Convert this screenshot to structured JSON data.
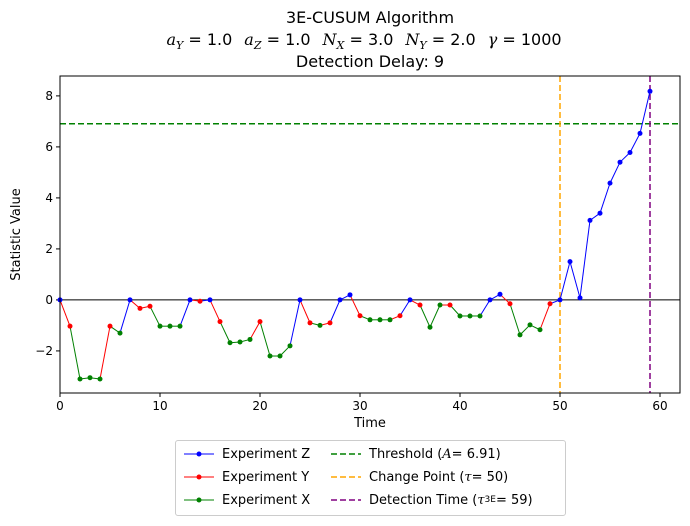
{
  "chart_data": {
    "type": "line",
    "title": "3E-CUSUM Algorithm",
    "subtitle": [
      {
        "sym": "a",
        "sub": "Y",
        "val": " = 1.0"
      },
      {
        "sym": "a",
        "sub": "Z",
        "val": " = 1.0"
      },
      {
        "sym": "N",
        "sub": "X",
        "val": " = 3.0"
      },
      {
        "sym": "N",
        "sub": "Y",
        "val": " = 2.0"
      },
      {
        "sym": "γ",
        "sub": "",
        "val": " = 1000"
      }
    ],
    "subtitle2": "Detection Delay: 9",
    "xlabel": "Time",
    "ylabel": "Statistic Value",
    "xlim": [
      0,
      62
    ],
    "ylim": [
      -3.65,
      8.78
    ],
    "xticks": [
      0,
      10,
      20,
      30,
      40,
      50,
      60
    ],
    "yticks": [
      -2,
      0,
      2,
      4,
      6,
      8
    ],
    "points": [
      [
        0,
        0,
        "Z"
      ],
      [
        1,
        -1.03,
        "Y"
      ],
      [
        2,
        -3.1,
        "X"
      ],
      [
        3,
        -3.05,
        "X"
      ],
      [
        4,
        -3.1,
        "X"
      ],
      [
        5,
        -1.03,
        "Y"
      ],
      [
        6,
        -1.3,
        "X"
      ],
      [
        7,
        0,
        "Z"
      ],
      [
        8,
        -0.33,
        "Y"
      ],
      [
        9,
        -0.25,
        "Y"
      ],
      [
        10,
        -1.03,
        "X"
      ],
      [
        11,
        -1.03,
        "X"
      ],
      [
        12,
        -1.03,
        "X"
      ],
      [
        13,
        0,
        "Z"
      ],
      [
        14,
        -0.05,
        "Y"
      ],
      [
        15,
        0,
        "Z"
      ],
      [
        16,
        -0.85,
        "Y"
      ],
      [
        17,
        -1.68,
        "X"
      ],
      [
        18,
        -1.65,
        "X"
      ],
      [
        19,
        -1.55,
        "X"
      ],
      [
        20,
        -0.85,
        "Y"
      ],
      [
        21,
        -2.2,
        "X"
      ],
      [
        22,
        -2.2,
        "X"
      ],
      [
        23,
        -1.8,
        "X"
      ],
      [
        24,
        0,
        "Z"
      ],
      [
        25,
        -0.9,
        "Y"
      ],
      [
        26,
        -1.0,
        "X"
      ],
      [
        27,
        -0.9,
        "Y"
      ],
      [
        28,
        0,
        "Z"
      ],
      [
        29,
        0.2,
        "Z"
      ],
      [
        30,
        -0.62,
        "Y"
      ],
      [
        31,
        -0.78,
        "X"
      ],
      [
        32,
        -0.78,
        "X"
      ],
      [
        33,
        -0.78,
        "X"
      ],
      [
        34,
        -0.62,
        "Y"
      ],
      [
        35,
        0,
        "Z"
      ],
      [
        36,
        -0.2,
        "Y"
      ],
      [
        37,
        -1.07,
        "X"
      ],
      [
        38,
        -0.2,
        "X"
      ],
      [
        39,
        -0.2,
        "Y"
      ],
      [
        40,
        -0.63,
        "X"
      ],
      [
        41,
        -0.63,
        "X"
      ],
      [
        42,
        -0.63,
        "X"
      ],
      [
        43,
        0,
        "Z"
      ],
      [
        44,
        0.22,
        "Z"
      ],
      [
        45,
        -0.15,
        "Y"
      ],
      [
        46,
        -1.37,
        "X"
      ],
      [
        47,
        -0.98,
        "X"
      ],
      [
        48,
        -1.17,
        "X"
      ],
      [
        49,
        -0.15,
        "Y"
      ],
      [
        50,
        0,
        "Z"
      ],
      [
        51,
        1.5,
        "Z"
      ],
      [
        52,
        0.08,
        "Z"
      ],
      [
        53,
        3.12,
        "Z"
      ],
      [
        54,
        3.4,
        "Z"
      ],
      [
        55,
        4.58,
        "Z"
      ],
      [
        56,
        5.4,
        "Z"
      ],
      [
        57,
        5.78,
        "Z"
      ],
      [
        58,
        6.53,
        "Z"
      ],
      [
        59,
        8.18,
        "Z"
      ]
    ],
    "threshold": 6.91,
    "change_point": 50,
    "detection_time": 59,
    "colors": {
      "Z": "#0000ff",
      "Y": "#ff0000",
      "X": "#008000",
      "threshold": "#008000",
      "change": "#ffa500",
      "detect": "#800080"
    },
    "legend": {
      "placement": "bottom-center",
      "z": "Experiment Z",
      "y": "Experiment Y",
      "x": "Experiment X",
      "thr_pre": "Threshold (",
      "thr_sym": "A",
      "thr_post": " = 6.91)",
      "cp_pre": "Change Point (",
      "cp_sym": "τ",
      "cp_post": " = 50)",
      "dt_pre": "Detection Time (",
      "dt_sym": "τ",
      "dt_sub": "3E",
      "dt_post": " = 59)"
    }
  }
}
